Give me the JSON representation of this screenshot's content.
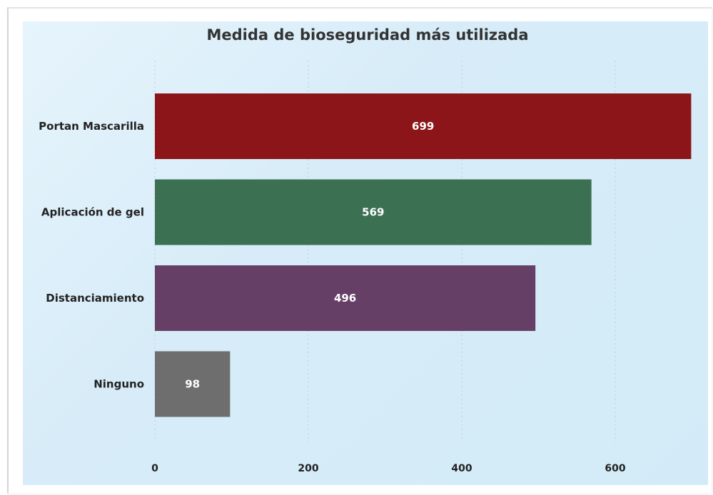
{
  "chart_data": {
    "type": "bar",
    "orientation": "horizontal",
    "title": "Medida de bioseguridad más utilizada",
    "categories": [
      "Portan Mascarilla",
      "Aplicación de gel",
      "Distanciamiento",
      "Ninguno"
    ],
    "values": [
      699,
      569,
      496,
      98
    ],
    "data_labels": [
      "699",
      "569",
      "496",
      "98"
    ],
    "colors": [
      "#8b1518",
      "#3c7053",
      "#653f66",
      "#6e6e6e"
    ],
    "xlim": [
      0,
      700
    ],
    "xticks": [
      0,
      200,
      400,
      600
    ],
    "xtick_labels": [
      "0",
      "200",
      "400",
      "600"
    ],
    "xlabel": "",
    "ylabel": "",
    "grid": "vertical dotted",
    "legend": "none",
    "background_color": "#d7ecf8"
  }
}
